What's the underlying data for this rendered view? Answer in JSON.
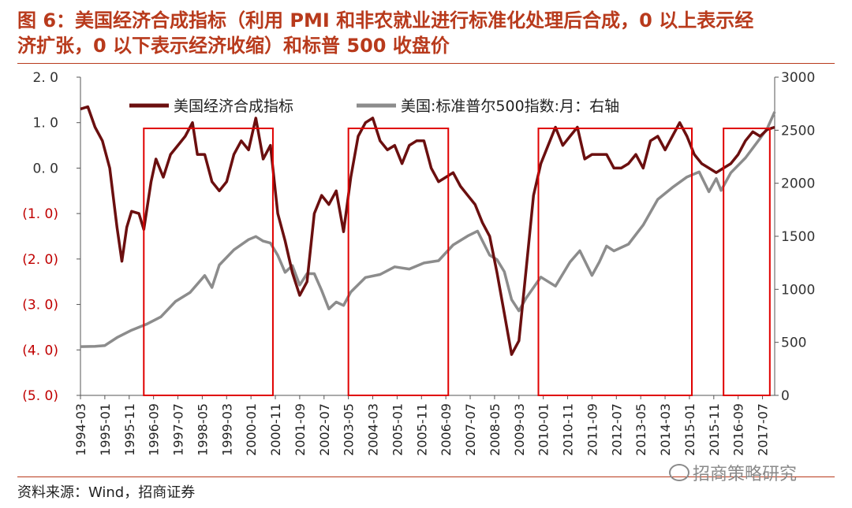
{
  "title": {
    "line1": "图 6：美国经济合成指标（利用 PMI 和非农就业进行标准化处理后合成，0 以上表示经",
    "line2": "济扩张，0 以下表示经济收缩）和标普 500 收盘价"
  },
  "source": "资料来源：Wind，招商证券",
  "watermark": "招商策略研究",
  "colors": {
    "title": "#b83a1c",
    "composite": "#6b0f0f",
    "sp500": "#8c8c8c",
    "box": "#e00000",
    "negative_tick": "#c00000"
  },
  "chart_data": {
    "type": "line",
    "legend": {
      "placement": "top",
      "entries": [
        "美国经济合成指标",
        "美国:标准普尔500指数:月：右轴"
      ]
    },
    "y_left": {
      "ylim": [
        -5.0,
        2.0
      ],
      "ticks": [
        "2. 0",
        "1. 0",
        "0. 0",
        "(1. 0)",
        "(2. 0)",
        "(3. 0)",
        "(4. 0)",
        "(5. 0)"
      ],
      "tick_values": [
        2,
        1,
        0,
        -1,
        -2,
        -3,
        -4,
        -5
      ]
    },
    "y_right": {
      "ylim": [
        0,
        3000
      ],
      "ticks": [
        "3000",
        "2500",
        "2000",
        "1500",
        "1000",
        "500",
        "0"
      ],
      "tick_values": [
        3000,
        2500,
        2000,
        1500,
        1000,
        500,
        0
      ]
    },
    "x": {
      "range": [
        "1994-03",
        "2017-12"
      ],
      "ticks": [
        "1994-03",
        "1995-01",
        "1995-11",
        "1996-09",
        "1997-07",
        "1998-05",
        "1999-03",
        "2000-01",
        "2000-11",
        "2001-09",
        "2002-07",
        "2003-05",
        "2004-03",
        "2005-01",
        "2005-11",
        "2006-09",
        "2007-07",
        "2008-05",
        "2009-03",
        "2010-01",
        "2010-11",
        "2011-09",
        "2012-07",
        "2013-05",
        "2014-03",
        "2015-01",
        "2015-11",
        "2016-09",
        "2017-07"
      ]
    },
    "grid": false,
    "series": [
      {
        "name": "美国经济合成指标",
        "axis": "left",
        "points": [
          [
            "1994-03",
            1.3
          ],
          [
            "1994-06",
            1.35
          ],
          [
            "1994-09",
            0.9
          ],
          [
            "1994-12",
            0.6
          ],
          [
            "1995-03",
            0.0
          ],
          [
            "1995-06",
            -1.3
          ],
          [
            "1995-08",
            -2.05
          ],
          [
            "1995-10",
            -1.3
          ],
          [
            "1995-12",
            -0.95
          ],
          [
            "1996-03",
            -1.0
          ],
          [
            "1996-05",
            -1.35
          ],
          [
            "1996-08",
            -0.3
          ],
          [
            "1996-10",
            0.2
          ],
          [
            "1997-01",
            -0.2
          ],
          [
            "1997-04",
            0.3
          ],
          [
            "1997-07",
            0.5
          ],
          [
            "1997-10",
            0.7
          ],
          [
            "1998-01",
            1.0
          ],
          [
            "1998-03",
            0.3
          ],
          [
            "1998-06",
            0.3
          ],
          [
            "1998-09",
            -0.3
          ],
          [
            "1998-12",
            -0.5
          ],
          [
            "1999-03",
            -0.3
          ],
          [
            "1999-06",
            0.3
          ],
          [
            "1999-09",
            0.6
          ],
          [
            "1999-12",
            0.4
          ],
          [
            "2000-03",
            1.1
          ],
          [
            "2000-06",
            0.2
          ],
          [
            "2000-09",
            0.5
          ],
          [
            "2000-12",
            -1.0
          ],
          [
            "2001-03",
            -1.6
          ],
          [
            "2001-06",
            -2.3
          ],
          [
            "2001-09",
            -2.8
          ],
          [
            "2001-12",
            -2.5
          ],
          [
            "2002-03",
            -1.0
          ],
          [
            "2002-06",
            -0.6
          ],
          [
            "2002-09",
            -0.8
          ],
          [
            "2002-12",
            -0.5
          ],
          [
            "2003-03",
            -1.4
          ],
          [
            "2003-06",
            -0.2
          ],
          [
            "2003-09",
            0.7
          ],
          [
            "2003-12",
            1.0
          ],
          [
            "2004-03",
            1.1
          ],
          [
            "2004-06",
            0.6
          ],
          [
            "2004-09",
            0.4
          ],
          [
            "2004-12",
            0.5
          ],
          [
            "2005-03",
            0.1
          ],
          [
            "2005-06",
            0.5
          ],
          [
            "2005-09",
            0.6
          ],
          [
            "2005-12",
            0.6
          ],
          [
            "2006-03",
            0.0
          ],
          [
            "2006-06",
            -0.3
          ],
          [
            "2006-09",
            -0.2
          ],
          [
            "2006-12",
            -0.1
          ],
          [
            "2007-03",
            -0.4
          ],
          [
            "2007-06",
            -0.6
          ],
          [
            "2007-09",
            -0.8
          ],
          [
            "2007-12",
            -1.2
          ],
          [
            "2008-03",
            -1.5
          ],
          [
            "2008-06",
            -2.3
          ],
          [
            "2008-09",
            -3.2
          ],
          [
            "2008-12",
            -4.1
          ],
          [
            "2009-03",
            -3.8
          ],
          [
            "2009-06",
            -2.2
          ],
          [
            "2009-09",
            -0.6
          ],
          [
            "2009-12",
            0.1
          ],
          [
            "2010-03",
            0.5
          ],
          [
            "2010-06",
            0.9
          ],
          [
            "2010-09",
            0.5
          ],
          [
            "2010-12",
            0.7
          ],
          [
            "2011-03",
            0.9
          ],
          [
            "2011-06",
            0.2
          ],
          [
            "2011-09",
            0.3
          ],
          [
            "2011-12",
            0.3
          ],
          [
            "2012-03",
            0.3
          ],
          [
            "2012-06",
            0.0
          ],
          [
            "2012-09",
            0.0
          ],
          [
            "2012-12",
            0.1
          ],
          [
            "2013-03",
            0.3
          ],
          [
            "2013-06",
            0.0
          ],
          [
            "2013-09",
            0.6
          ],
          [
            "2013-12",
            0.7
          ],
          [
            "2014-03",
            0.4
          ],
          [
            "2014-06",
            0.7
          ],
          [
            "2014-09",
            1.0
          ],
          [
            "2014-12",
            0.7
          ],
          [
            "2015-03",
            0.3
          ],
          [
            "2015-06",
            0.1
          ],
          [
            "2015-09",
            0.0
          ],
          [
            "2015-12",
            -0.1
          ],
          [
            "2016-03",
            0.0
          ],
          [
            "2016-06",
            0.1
          ],
          [
            "2016-09",
            0.3
          ],
          [
            "2016-12",
            0.6
          ],
          [
            "2017-03",
            0.8
          ],
          [
            "2017-06",
            0.7
          ],
          [
            "2017-09",
            0.85
          ],
          [
            "2017-12",
            0.9
          ]
        ]
      },
      {
        "name": "美国:标准普尔500指数:月：右轴",
        "axis": "right",
        "points": [
          [
            "1994-03",
            460
          ],
          [
            "1994-09",
            462
          ],
          [
            "1995-01",
            470
          ],
          [
            "1995-06",
            545
          ],
          [
            "1995-12",
            615
          ],
          [
            "1996-06",
            670
          ],
          [
            "1996-12",
            740
          ],
          [
            "1997-06",
            885
          ],
          [
            "1997-12",
            970
          ],
          [
            "1998-06",
            1130
          ],
          [
            "1998-09",
            1017
          ],
          [
            "1998-12",
            1229
          ],
          [
            "1999-06",
            1372
          ],
          [
            "1999-12",
            1469
          ],
          [
            "2000-03",
            1498
          ],
          [
            "2000-06",
            1455
          ],
          [
            "2000-09",
            1436
          ],
          [
            "2000-12",
            1320
          ],
          [
            "2001-03",
            1160
          ],
          [
            "2001-06",
            1224
          ],
          [
            "2001-09",
            1040
          ],
          [
            "2001-12",
            1148
          ],
          [
            "2002-03",
            1147
          ],
          [
            "2002-06",
            990
          ],
          [
            "2002-09",
            815
          ],
          [
            "2002-12",
            880
          ],
          [
            "2003-03",
            848
          ],
          [
            "2003-06",
            975
          ],
          [
            "2003-12",
            1112
          ],
          [
            "2004-06",
            1140
          ],
          [
            "2004-12",
            1212
          ],
          [
            "2005-06",
            1191
          ],
          [
            "2005-12",
            1248
          ],
          [
            "2006-06",
            1270
          ],
          [
            "2006-12",
            1418
          ],
          [
            "2007-06",
            1503
          ],
          [
            "2007-10",
            1549
          ],
          [
            "2008-03",
            1322
          ],
          [
            "2008-06",
            1280
          ],
          [
            "2008-09",
            1166
          ],
          [
            "2008-12",
            903
          ],
          [
            "2009-03",
            797
          ],
          [
            "2009-06",
            919
          ],
          [
            "2009-12",
            1115
          ],
          [
            "2010-06",
            1030
          ],
          [
            "2010-12",
            1258
          ],
          [
            "2011-04",
            1363
          ],
          [
            "2011-09",
            1131
          ],
          [
            "2011-12",
            1257
          ],
          [
            "2012-03",
            1408
          ],
          [
            "2012-06",
            1362
          ],
          [
            "2012-12",
            1426
          ],
          [
            "2013-06",
            1606
          ],
          [
            "2013-12",
            1848
          ],
          [
            "2014-06",
            1960
          ],
          [
            "2014-12",
            2059
          ],
          [
            "2015-05",
            2107
          ],
          [
            "2015-09",
            1920
          ],
          [
            "2015-12",
            2044
          ],
          [
            "2016-02",
            1932
          ],
          [
            "2016-06",
            2099
          ],
          [
            "2016-12",
            2239
          ],
          [
            "2017-06",
            2423
          ],
          [
            "2017-09",
            2519
          ],
          [
            "2017-12",
            2674
          ]
        ]
      }
    ],
    "highlight_boxes": [
      {
        "start": "1996-05",
        "end": "2000-10"
      },
      {
        "start": "2003-05",
        "end": "2006-10"
      },
      {
        "start": "2009-11",
        "end": "2015-02"
      },
      {
        "start": "2016-03",
        "end": "2017-10"
      }
    ]
  }
}
